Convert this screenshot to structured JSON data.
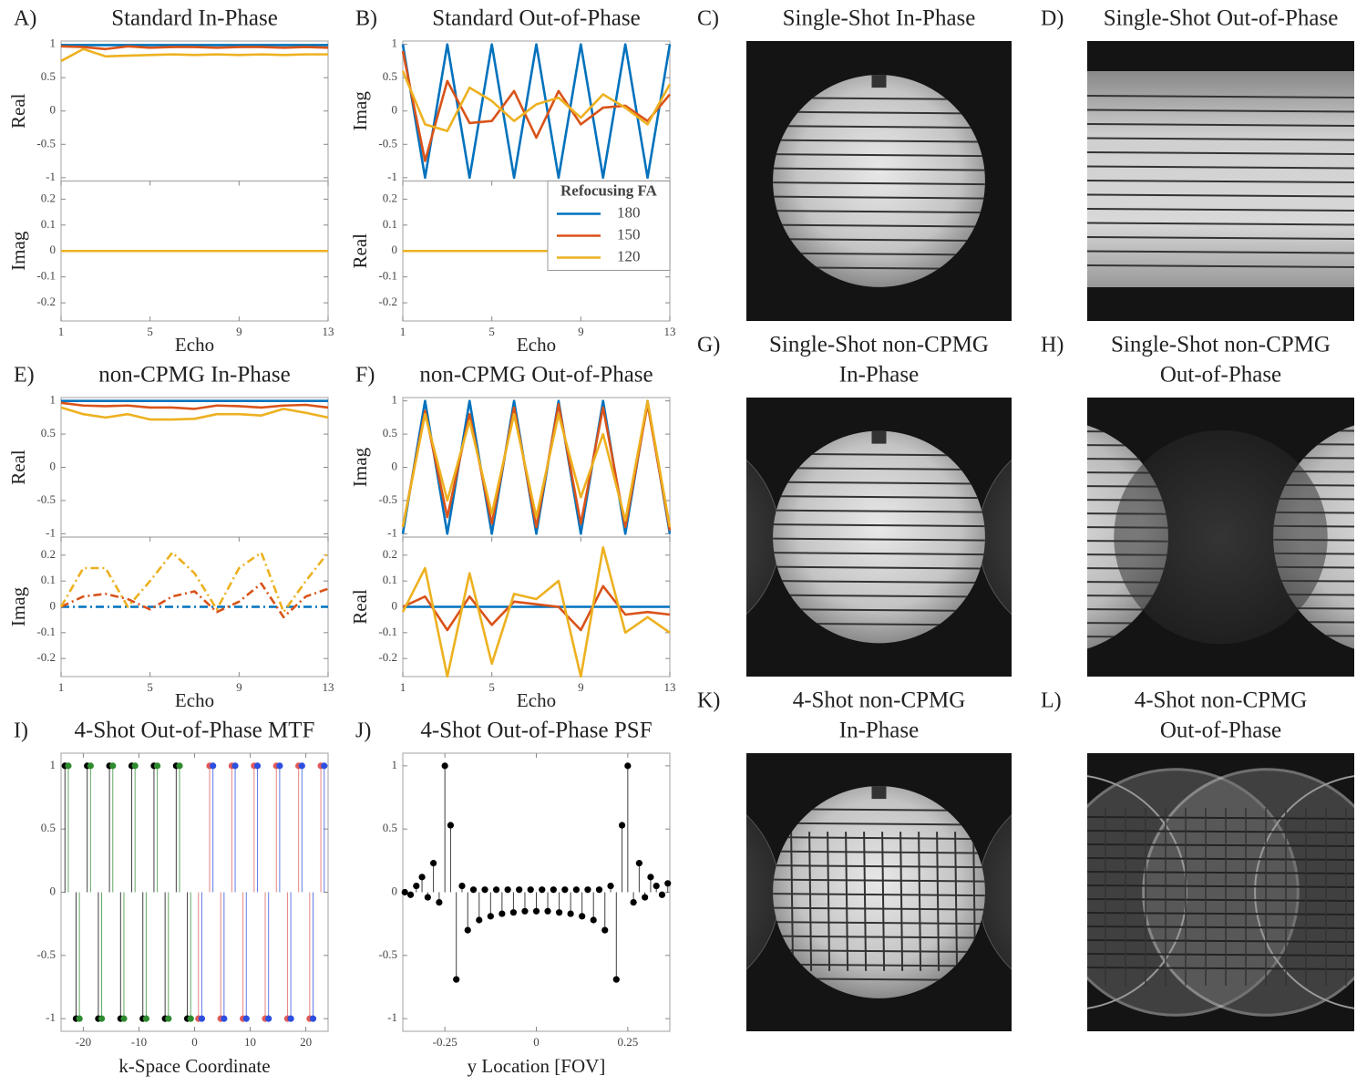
{
  "chart_data": [
    {
      "type": "line",
      "label": "A)",
      "title": "Standard In-Phase",
      "xlabel": "Echo",
      "x": [
        1,
        2,
        3,
        4,
        5,
        6,
        7,
        8,
        9,
        10,
        11,
        12,
        13
      ],
      "xlim": [
        1,
        13
      ],
      "xticks": [
        1,
        5,
        9,
        13
      ],
      "subplots": [
        {
          "ylabel": "Real",
          "ylim": [
            -1.05,
            1.05
          ],
          "yticks": [
            -1,
            -0.5,
            0,
            0.5,
            1
          ],
          "linestyle": "solid",
          "series": [
            {
              "color": "#0072bd",
              "values": [
                0.99,
                0.99,
                0.99,
                0.99,
                0.99,
                0.99,
                0.99,
                0.99,
                0.99,
                0.99,
                0.99,
                0.99,
                0.99
              ]
            },
            {
              "color": "#d95319",
              "values": [
                0.97,
                0.96,
                0.93,
                0.97,
                0.95,
                0.96,
                0.96,
                0.95,
                0.96,
                0.96,
                0.95,
                0.96,
                0.95
              ]
            },
            {
              "color": "#edb120",
              "values": [
                0.75,
                0.93,
                0.82,
                0.83,
                0.84,
                0.85,
                0.84,
                0.85,
                0.84,
                0.85,
                0.84,
                0.85,
                0.85
              ]
            }
          ]
        },
        {
          "ylabel": "Imag",
          "ylim": [
            -0.27,
            0.27
          ],
          "yticks": [
            -0.2,
            -0.1,
            0,
            0.1,
            0.2
          ],
          "linestyle": "solid",
          "series": [
            {
              "color": "#0072bd",
              "values": [
                0,
                0,
                0,
                0,
                0,
                0,
                0,
                0,
                0,
                0,
                0,
                0,
                0
              ]
            },
            {
              "color": "#d95319",
              "values": [
                0,
                0,
                0,
                0,
                0,
                0,
                0,
                0,
                0,
                0,
                0,
                0,
                0
              ]
            },
            {
              "color": "#edb120",
              "values": [
                0,
                0,
                0,
                0,
                0,
                0,
                0,
                0,
                0,
                0,
                0,
                0,
                0
              ]
            }
          ]
        }
      ]
    },
    {
      "type": "line",
      "label": "B)",
      "title": "Standard Out-of-Phase",
      "xlabel": "Echo",
      "x": [
        1,
        2,
        3,
        4,
        5,
        6,
        7,
        8,
        9,
        10,
        11,
        12,
        13
      ],
      "xlim": [
        1,
        13
      ],
      "xticks": [
        1,
        5,
        9,
        13
      ],
      "subplots": [
        {
          "ylabel": "Imag",
          "ylim": [
            -1.05,
            1.05
          ],
          "yticks": [
            -1,
            -0.5,
            0,
            0.5,
            1
          ],
          "linestyle": "solid",
          "series": [
            {
              "color": "#0072bd",
              "values": [
                1,
                -1,
                1,
                -1,
                1,
                -1,
                1,
                -1,
                1,
                -1,
                1,
                -1,
                1
              ]
            },
            {
              "color": "#d95319",
              "values": [
                0.9,
                -0.75,
                0.45,
                -0.18,
                -0.15,
                0.3,
                -0.4,
                0.3,
                -0.2,
                0.05,
                0.08,
                -0.15,
                0.25
              ]
            },
            {
              "color": "#edb120",
              "values": [
                0.6,
                -0.2,
                -0.3,
                0.35,
                0.15,
                -0.15,
                0.1,
                0.2,
                -0.1,
                0.25,
                0.05,
                -0.2,
                0.4
              ]
            }
          ]
        },
        {
          "ylabel": "Real",
          "ylim": [
            -0.27,
            0.27
          ],
          "yticks": [
            -0.2,
            -0.1,
            0,
            0.1,
            0.2
          ],
          "linestyle": "solid",
          "legend": {
            "title": "Refocusing FA",
            "position": "northeast"
          },
          "series": [
            {
              "name": "180",
              "color": "#0072bd",
              "values": [
                0,
                0,
                0,
                0,
                0,
                0,
                0,
                0,
                0,
                0,
                0,
                0,
                0
              ]
            },
            {
              "name": "150",
              "color": "#d95319",
              "values": [
                0,
                0,
                0,
                0,
                0,
                0,
                0,
                0,
                0,
                0,
                0,
                0,
                0
              ]
            },
            {
              "name": "120",
              "color": "#edb120",
              "values": [
                0,
                0,
                0,
                0,
                0,
                0,
                0,
                0,
                0,
                0,
                0,
                0,
                0
              ]
            }
          ]
        }
      ]
    },
    {
      "type": "image",
      "label": "C)",
      "title": [
        "Single-Shot In-Phase"
      ]
    },
    {
      "type": "image",
      "label": "D)",
      "title": [
        "Single-Shot Out-of-Phase"
      ]
    },
    {
      "type": "line",
      "label": "E)",
      "title": "non-CPMG In-Phase",
      "xlabel": "Echo",
      "x": [
        1,
        2,
        3,
        4,
        5,
        6,
        7,
        8,
        9,
        10,
        11,
        12,
        13
      ],
      "xlim": [
        1,
        13
      ],
      "xticks": [
        1,
        5,
        9,
        13
      ],
      "subplots": [
        {
          "ylabel": "Real",
          "ylim": [
            -1.05,
            1.05
          ],
          "yticks": [
            -1,
            -0.5,
            0,
            0.5,
            1
          ],
          "linestyle": "solid",
          "series": [
            {
              "color": "#0072bd",
              "values": [
                1,
                1,
                1,
                1,
                1,
                1,
                1,
                1,
                1,
                1,
                1,
                1,
                1
              ]
            },
            {
              "color": "#d95319",
              "values": [
                0.97,
                0.93,
                0.92,
                0.93,
                0.9,
                0.9,
                0.88,
                0.93,
                0.92,
                0.9,
                0.93,
                0.94,
                0.9
              ]
            },
            {
              "color": "#edb120",
              "values": [
                0.9,
                0.8,
                0.75,
                0.8,
                0.72,
                0.72,
                0.73,
                0.8,
                0.8,
                0.78,
                0.88,
                0.82,
                0.75
              ]
            }
          ]
        },
        {
          "ylabel": "Imag",
          "ylim": [
            -0.27,
            0.27
          ],
          "yticks": [
            -0.2,
            -0.1,
            0,
            0.1,
            0.2
          ],
          "linestyle": "dashdot",
          "series": [
            {
              "color": "#0072bd",
              "values": [
                0,
                0,
                0,
                0,
                0,
                0,
                0,
                0,
                0,
                0,
                0,
                0,
                0
              ]
            },
            {
              "color": "#d95319",
              "values": [
                0,
                0.04,
                0.05,
                0.03,
                -0.01,
                0.04,
                0.06,
                -0.02,
                0.02,
                0.09,
                -0.04,
                0.04,
                0.07
              ]
            },
            {
              "color": "#edb120",
              "values": [
                0,
                0.15,
                0.15,
                0,
                0.1,
                0.21,
                0.13,
                -0.01,
                0.15,
                0.21,
                -0.02,
                0.1,
                0.21
              ]
            }
          ]
        }
      ]
    },
    {
      "type": "line",
      "label": "F)",
      "title": "non-CPMG Out-of-Phase",
      "xlabel": "Echo",
      "x": [
        1,
        2,
        3,
        4,
        5,
        6,
        7,
        8,
        9,
        10,
        11,
        12,
        13
      ],
      "xlim": [
        1,
        13
      ],
      "xticks": [
        1,
        5,
        9,
        13
      ],
      "subplots": [
        {
          "ylabel": "Imag",
          "ylim": [
            -1.05,
            1.05
          ],
          "yticks": [
            -1,
            -0.5,
            0,
            0.5,
            1
          ],
          "linestyle": "solid",
          "series": [
            {
              "color": "#0072bd",
              "values": [
                -1,
                1,
                -1,
                1,
                -1,
                1,
                -1,
                1,
                -1,
                1,
                -1,
                1,
                -1
              ]
            },
            {
              "color": "#d95319",
              "values": [
                -0.9,
                0.85,
                -0.75,
                0.8,
                -0.85,
                0.9,
                -0.9,
                0.95,
                -0.85,
                0.9,
                -0.9,
                0.95,
                -0.95
              ]
            },
            {
              "color": "#edb120",
              "values": [
                -0.9,
                0.8,
                -0.5,
                0.7,
                -0.7,
                0.8,
                -0.75,
                0.8,
                -0.45,
                0.5,
                -0.8,
                1,
                -0.9
              ]
            }
          ]
        },
        {
          "ylabel": "Real",
          "ylim": [
            -0.27,
            0.27
          ],
          "yticks": [
            -0.2,
            -0.1,
            0,
            0.1,
            0.2
          ],
          "linestyle": "solid",
          "series": [
            {
              "color": "#0072bd",
              "values": [
                0,
                0,
                0,
                0,
                0,
                0,
                0,
                0,
                0,
                0,
                0,
                0,
                0
              ]
            },
            {
              "color": "#d95319",
              "values": [
                0,
                0.04,
                -0.09,
                0.04,
                -0.07,
                0.02,
                0.01,
                0,
                -0.09,
                0.08,
                -0.03,
                -0.02,
                -0.03
              ]
            },
            {
              "color": "#edb120",
              "values": [
                -0.02,
                0.15,
                -0.27,
                0.13,
                -0.22,
                0.05,
                0.03,
                0.1,
                -0.27,
                0.23,
                -0.1,
                -0.04,
                -0.1
              ]
            }
          ]
        }
      ]
    },
    {
      "type": "image",
      "label": "G)",
      "title": [
        "Single-Shot non-CPMG",
        "In-Phase"
      ]
    },
    {
      "type": "image",
      "label": "H)",
      "title": [
        "Single-Shot non-CPMG",
        "Out-of-Phase"
      ]
    },
    {
      "type": "stem",
      "label": "I)",
      "title": "4-Shot Out-of-Phase MTF",
      "xlabel": "k-Space Coordinate",
      "xlim": [
        -24,
        24
      ],
      "xticks": [
        -20,
        -10,
        0,
        10,
        20
      ],
      "ylim": [
        -1.1,
        1.1
      ],
      "yticks": [
        -1,
        -0.5,
        0,
        0.5,
        1
      ],
      "series": [
        {
          "color": "#000000",
          "x": [
            -23.3,
            -21.3,
            -19.3,
            -17.3,
            -15.3,
            -13.3,
            -11.3,
            -9.3,
            -7.3,
            -5.3,
            -3.3,
            -1.3
          ],
          "values": [
            1,
            -1,
            1,
            -1,
            1,
            -1,
            1,
            -1,
            1,
            -1,
            1,
            -1
          ]
        },
        {
          "color": "#2e8b2e",
          "x": [
            -22.7,
            -20.7,
            -18.7,
            -16.7,
            -14.7,
            -12.7,
            -10.7,
            -8.7,
            -6.7,
            -4.7,
            -2.7,
            -0.7
          ],
          "values": [
            1,
            -1,
            1,
            -1,
            1,
            -1,
            1,
            -1,
            1,
            -1,
            1,
            -1
          ]
        },
        {
          "color": "#e05a5a",
          "x": [
            0.7,
            2.7,
            4.7,
            6.7,
            8.7,
            10.7,
            12.7,
            14.7,
            16.7,
            18.7,
            20.7,
            22.7
          ],
          "values": [
            -1,
            1,
            -1,
            1,
            -1,
            1,
            -1,
            1,
            -1,
            1,
            -1,
            1
          ]
        },
        {
          "color": "#2d4fe0",
          "x": [
            1.3,
            3.3,
            5.3,
            7.3,
            9.3,
            11.3,
            13.3,
            15.3,
            17.3,
            19.3,
            21.3,
            23.3
          ],
          "values": [
            -1,
            1,
            -1,
            1,
            -1,
            1,
            -1,
            1,
            -1,
            1,
            -1,
            1
          ]
        }
      ]
    },
    {
      "type": "stem",
      "label": "J)",
      "title": "4-Shot Out-of-Phase PSF",
      "xlabel": "y Location [FOV]",
      "xlim": [
        -0.365,
        0.365
      ],
      "xticks": [
        -0.25,
        0,
        0.25
      ],
      "ylim": [
        -1.1,
        1.1
      ],
      "yticks": [
        -1,
        -0.5,
        0,
        0.5,
        1
      ],
      "series": [
        {
          "color": "#000000",
          "x": [
            -0.359375,
            -0.34375,
            -0.328125,
            -0.3125,
            -0.296875,
            -0.28125,
            -0.265625,
            -0.25,
            -0.234375,
            -0.21875,
            -0.203125,
            -0.1875,
            -0.171875,
            -0.15625,
            -0.140625,
            -0.125,
            -0.109375,
            -0.09375,
            -0.078125,
            -0.0625,
            -0.046875,
            -0.03125,
            -0.015625,
            0,
            0.015625,
            0.03125,
            0.046875,
            0.0625,
            0.078125,
            0.09375,
            0.109375,
            0.125,
            0.140625,
            0.15625,
            0.171875,
            0.1875,
            0.203125,
            0.21875,
            0.234375,
            0.25,
            0.265625,
            0.28125,
            0.296875,
            0.3125,
            0.328125,
            0.34375,
            0.359375
          ],
          "values": [
            0,
            -0.02,
            0.05,
            0.12,
            -0.04,
            0.23,
            -0.08,
            1,
            0.53,
            -0.69,
            0.05,
            -0.3,
            0.02,
            -0.22,
            0.02,
            -0.19,
            0.02,
            -0.17,
            0.02,
            -0.16,
            0.02,
            -0.15,
            0.02,
            -0.15,
            0.02,
            -0.15,
            0.02,
            -0.16,
            0.02,
            -0.17,
            0.02,
            -0.19,
            0.02,
            -0.22,
            0.02,
            -0.3,
            0.05,
            -0.69,
            0.53,
            1,
            -0.08,
            0.23,
            -0.04,
            0.12,
            0.05,
            -0.02,
            0.07
          ]
        }
      ]
    },
    {
      "type": "image",
      "label": "K)",
      "title": [
        "4-Shot non-CPMG",
        "In-Phase"
      ]
    },
    {
      "type": "image",
      "label": "L)",
      "title": [
        "4-Shot non-CPMG",
        "Out-of-Phase"
      ]
    }
  ]
}
